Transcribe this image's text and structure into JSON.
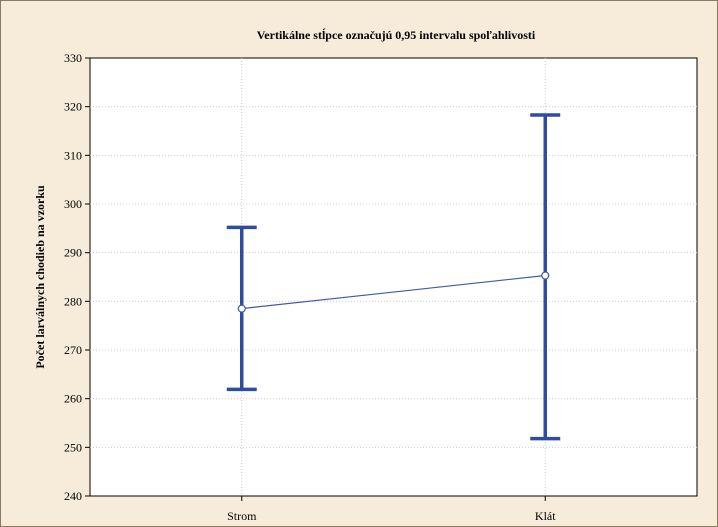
{
  "chart_data": {
    "type": "line",
    "title": "Vertikálne stĺpce označujú 0,95 intervalu spoľahlivosti",
    "xlabel": "",
    "ylabel": "Počet larválnych chodieb na vzorku",
    "categories": [
      "Strom",
      "Klát"
    ],
    "series": [
      {
        "values": [
          278.5,
          285.3
        ],
        "ci_lower": [
          261.9,
          251.8
        ],
        "ci_upper": [
          295.2,
          318.3
        ]
      }
    ],
    "ylim": [
      240,
      330
    ],
    "yticks": [
      240,
      250,
      260,
      270,
      280,
      290,
      300,
      310,
      320,
      330
    ],
    "grid": true,
    "colors": {
      "background": "#f7ecda",
      "plot_background": "#ffffff",
      "line": "#3c5aa6",
      "error_bar": "#2e4d9e",
      "grid": "#cfcfcf"
    }
  }
}
